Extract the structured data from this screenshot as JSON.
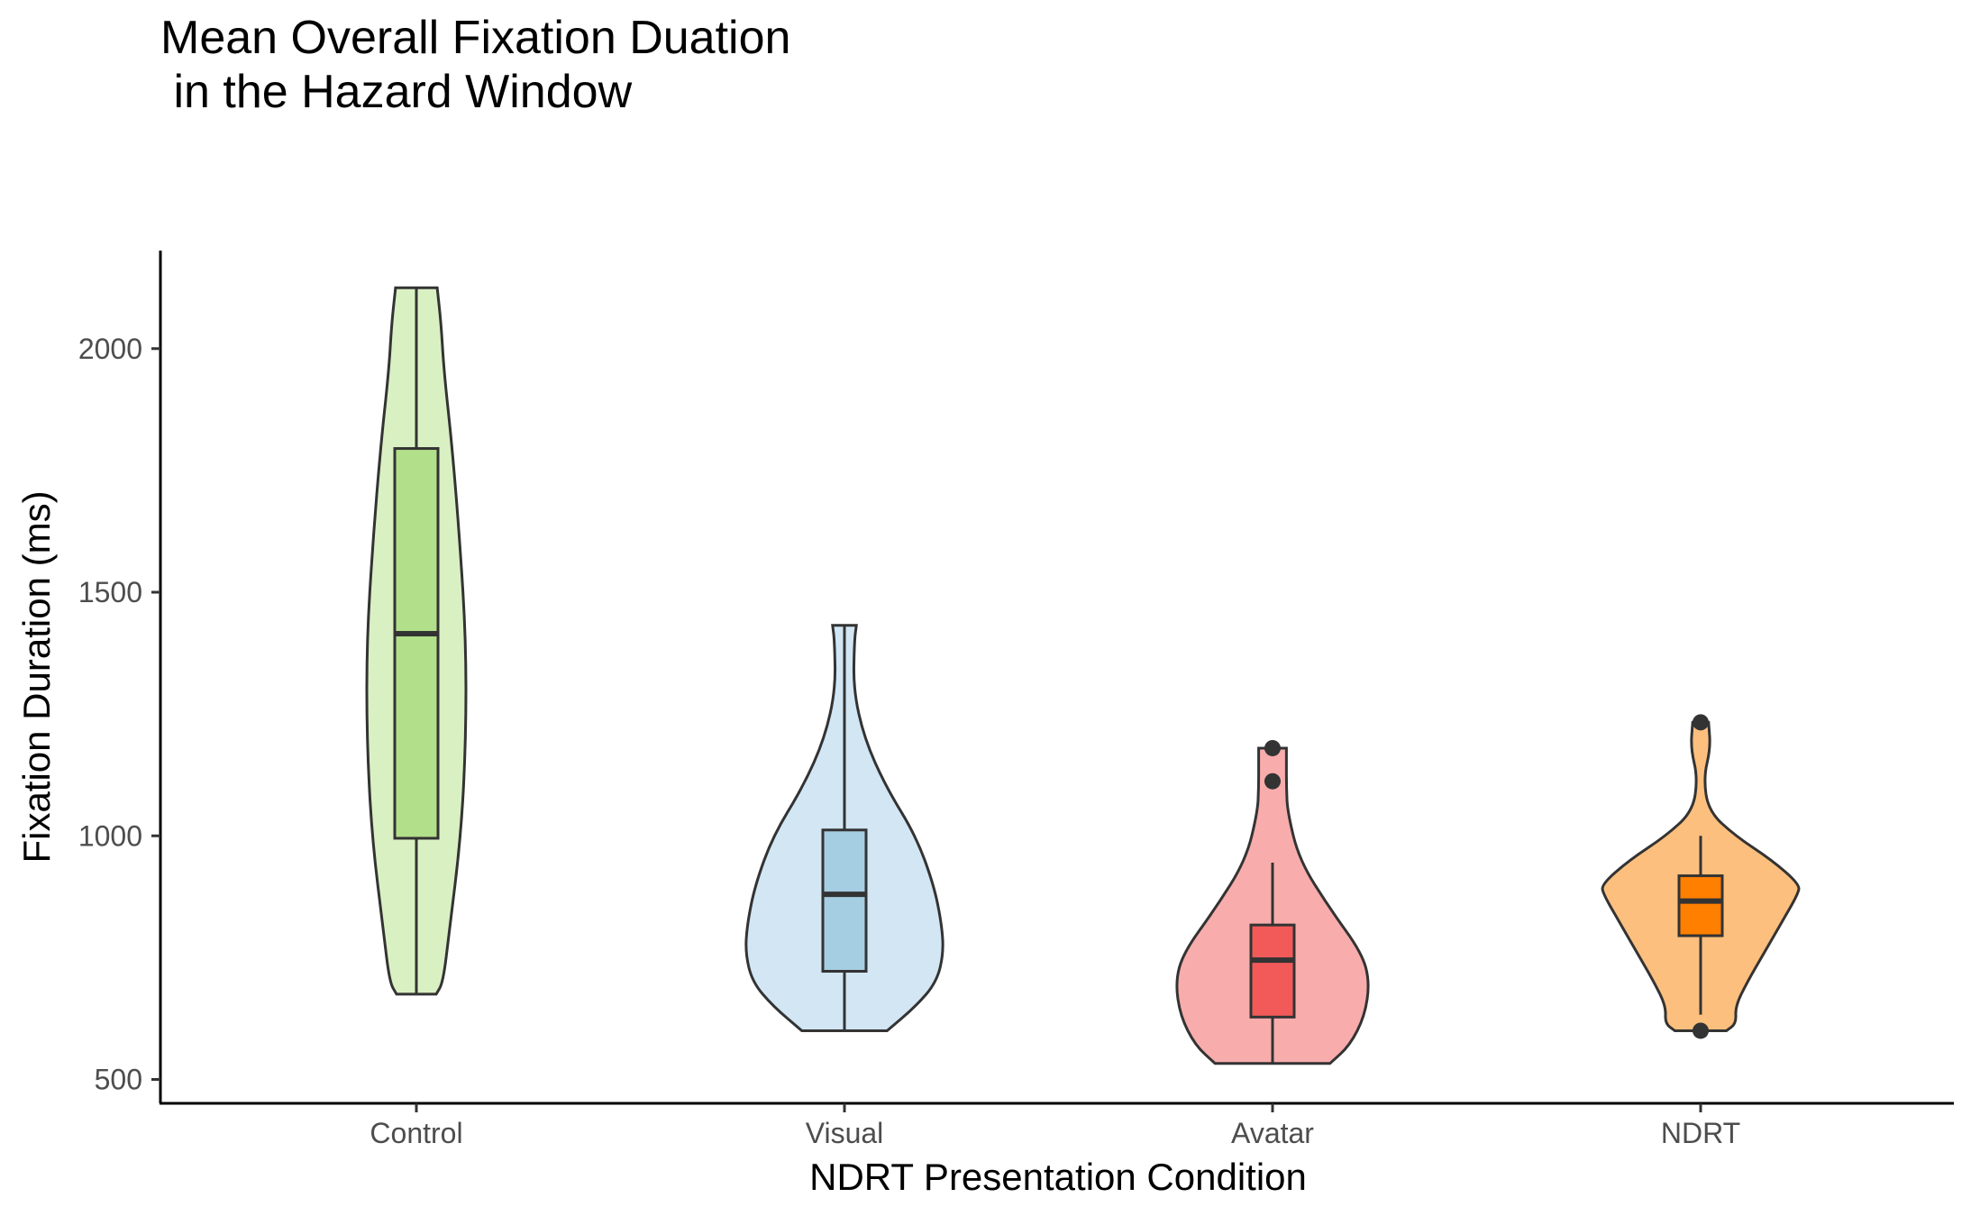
{
  "chart_data": {
    "type": "violin",
    "title": "Mean Overall Fixation Duation\n in the Hazard Window",
    "xlabel": "NDRT Presentation Condition",
    "ylabel": "Fixation Duration (ms)",
    "categories": [
      "Control",
      "Visual",
      "Avatar",
      "NDRT"
    ],
    "ylim": [
      450,
      2200
    ],
    "yticks": [
      500,
      1000,
      1500,
      2000
    ],
    "grid": false,
    "legend": "none",
    "groups": [
      {
        "name": "Control",
        "violin_color": "#d9f0c3",
        "box_color": "#b2df8a",
        "box": {
          "min": 675,
          "q1": 995,
          "median": 1415,
          "q3": 1795,
          "max": 2125
        },
        "outliers": [],
        "density": [
          [
            675,
            0.2
          ],
          [
            700,
            0.27
          ],
          [
            800,
            0.33
          ],
          [
            1000,
            0.45
          ],
          [
            1200,
            0.5
          ],
          [
            1400,
            0.5
          ],
          [
            1600,
            0.44
          ],
          [
            1800,
            0.36
          ],
          [
            1950,
            0.28
          ],
          [
            2050,
            0.25
          ],
          [
            2125,
            0.21
          ]
        ]
      },
      {
        "name": "Visual",
        "violin_color": "#d2e6f4",
        "box_color": "#a6cee3",
        "box": {
          "min": 600,
          "q1": 722,
          "median": 880,
          "q3": 1012,
          "max": 1432
        },
        "outliers": [],
        "density": [
          [
            600,
            0.43
          ],
          [
            650,
            0.72
          ],
          [
            700,
            0.93
          ],
          [
            760,
            1.0
          ],
          [
            820,
            0.98
          ],
          [
            900,
            0.9
          ],
          [
            1000,
            0.72
          ],
          [
            1100,
            0.42
          ],
          [
            1200,
            0.2
          ],
          [
            1300,
            0.09
          ],
          [
            1400,
            0.1
          ],
          [
            1432,
            0.12
          ]
        ]
      },
      {
        "name": "Avatar",
        "violin_color": "#f8acac",
        "box_color": "#f25a5a",
        "box": {
          "min": 533,
          "q1": 628,
          "median": 745,
          "q3": 817,
          "max": 945
        },
        "outliers": [
          1112,
          1180
        ],
        "density": [
          [
            533,
            0.58
          ],
          [
            570,
            0.78
          ],
          [
            630,
            0.93
          ],
          [
            700,
            0.98
          ],
          [
            760,
            0.9
          ],
          [
            850,
            0.58
          ],
          [
            950,
            0.27
          ],
          [
            1050,
            0.15
          ],
          [
            1100,
            0.14
          ],
          [
            1150,
            0.14
          ],
          [
            1180,
            0.14
          ]
        ]
      },
      {
        "name": "NDRT",
        "violin_color": "#fdbf7e",
        "box_color": "#ff7f00",
        "box": {
          "min": 633,
          "q1": 795,
          "median": 866,
          "q3": 918,
          "max": 1000
        },
        "outliers": [
          600,
          1233
        ],
        "density": [
          [
            600,
            0.26
          ],
          [
            615,
            0.36
          ],
          [
            650,
            0.35
          ],
          [
            700,
            0.47
          ],
          [
            760,
            0.64
          ],
          [
            830,
            0.84
          ],
          [
            880,
            0.98
          ],
          [
            900,
            1.0
          ],
          [
            950,
            0.72
          ],
          [
            1000,
            0.35
          ],
          [
            1050,
            0.08
          ],
          [
            1120,
            0.03
          ],
          [
            1180,
            0.1
          ],
          [
            1233,
            0.08
          ]
        ]
      }
    ]
  }
}
